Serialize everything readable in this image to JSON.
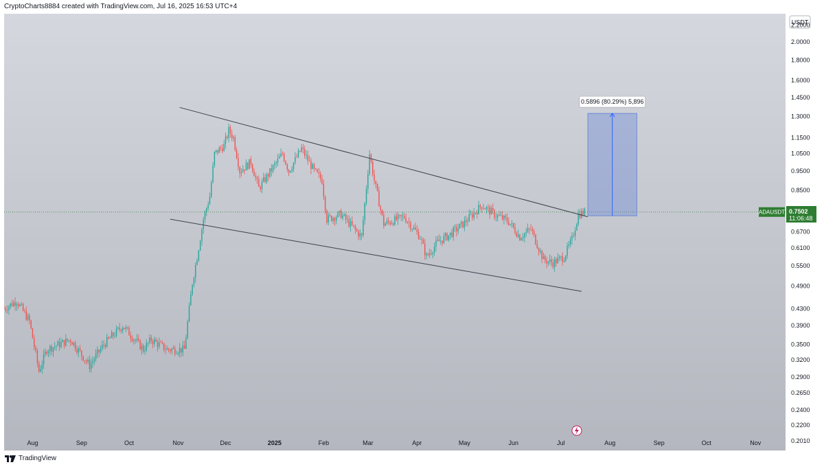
{
  "header": {
    "text": "CryptoCharts8884 created with TradingView.com, Jul 16, 2025 16:53 UTC+4"
  },
  "footer": {
    "brand": "TradingView"
  },
  "colors": {
    "up": "#26a69a",
    "down": "#ef5350",
    "range": "#5b7fd6",
    "currency_badge": "#2e7d32"
  },
  "chart_data": {
    "type": "candlestick",
    "symbol": "ADAUSDT",
    "currency": "USDT",
    "last_price": "0.7502",
    "countdown": "11:06:48",
    "y_scale": "log",
    "ylim": [
      0.19,
      2.35
    ],
    "y_ticks": [
      "2.2000",
      "2.0000",
      "1.8000",
      "1.6000",
      "1.4500",
      "1.3000",
      "1.1500",
      "1.0500",
      "0.9500",
      "0.8500",
      "0.7502",
      "0.6700",
      "0.6100",
      "0.5500",
      "0.4900",
      "0.4300",
      "0.3900",
      "0.3500",
      "0.3200",
      "0.2900",
      "0.2650",
      "0.2400",
      "0.2200",
      "0.2010"
    ],
    "x_ticks": [
      "Aug",
      "Sep",
      "Oct",
      "Nov",
      "Dec",
      "2025",
      "Feb",
      "Mar",
      "Apr",
      "May",
      "Jun",
      "Jul",
      "Aug",
      "Sep",
      "Oct",
      "Nov"
    ],
    "x_tick_dates": [
      "2024-08-01",
      "2024-09-01",
      "2024-10-01",
      "2024-11-01",
      "2024-12-01",
      "2025-01-01",
      "2025-02-01",
      "2025-03-01",
      "2025-04-01",
      "2025-05-01",
      "2025-06-01",
      "2025-07-01",
      "2025-08-01",
      "2025-09-01",
      "2025-10-01",
      "2025-11-01"
    ],
    "xlim": [
      "2024-07-14",
      "2025-11-20"
    ],
    "price_path": [
      [
        "2024-07-14",
        0.43
      ],
      [
        "2024-07-22",
        0.45
      ],
      [
        "2024-07-30",
        0.4
      ],
      [
        "2024-08-05",
        0.3
      ],
      [
        "2024-08-10",
        0.34
      ],
      [
        "2024-08-25",
        0.36
      ],
      [
        "2024-09-06",
        0.31
      ],
      [
        "2024-09-15",
        0.35
      ],
      [
        "2024-09-27",
        0.39
      ],
      [
        "2024-10-10",
        0.34
      ],
      [
        "2024-10-15",
        0.36
      ],
      [
        "2024-10-25",
        0.34
      ],
      [
        "2024-11-05",
        0.34
      ],
      [
        "2024-11-10",
        0.5
      ],
      [
        "2024-11-13",
        0.58
      ],
      [
        "2024-11-17",
        0.72
      ],
      [
        "2024-11-21",
        0.82
      ],
      [
        "2024-11-24",
        1.05
      ],
      [
        "2024-11-30",
        1.1
      ],
      [
        "2024-12-03",
        1.2
      ],
      [
        "2024-12-06",
        1.15
      ],
      [
        "2024-12-10",
        0.95
      ],
      [
        "2024-12-17",
        1.0
      ],
      [
        "2024-12-22",
        0.86
      ],
      [
        "2025-01-06",
        1.05
      ],
      [
        "2025-01-10",
        0.95
      ],
      [
        "2025-01-18",
        1.08
      ],
      [
        "2025-01-26",
        0.95
      ],
      [
        "2025-01-31",
        0.9
      ],
      [
        "2025-02-03",
        0.72
      ],
      [
        "2025-02-12",
        0.74
      ],
      [
        "2025-02-25",
        0.65
      ],
      [
        "2025-03-02",
        1.05
      ],
      [
        "2025-03-05",
        0.9
      ],
      [
        "2025-03-11",
        0.7
      ],
      [
        "2025-03-24",
        0.73
      ],
      [
        "2025-04-03",
        0.65
      ],
      [
        "2025-04-07",
        0.58
      ],
      [
        "2025-04-14",
        0.63
      ],
      [
        "2025-04-22",
        0.66
      ],
      [
        "2025-04-30",
        0.7
      ],
      [
        "2025-05-12",
        0.78
      ],
      [
        "2025-05-20",
        0.74
      ],
      [
        "2025-05-29",
        0.71
      ],
      [
        "2025-06-05",
        0.65
      ],
      [
        "2025-06-12",
        0.68
      ],
      [
        "2025-06-20",
        0.57
      ],
      [
        "2025-06-26",
        0.56
      ],
      [
        "2025-07-03",
        0.58
      ],
      [
        "2025-07-08",
        0.64
      ],
      [
        "2025-07-12",
        0.74
      ],
      [
        "2025-07-16",
        0.75
      ]
    ],
    "trendlines": [
      {
        "name": "upper",
        "from": [
          "2024-11-02",
          1.37
        ],
        "to": [
          "2025-07-18",
          0.73
        ]
      },
      {
        "name": "lower",
        "from": [
          "2024-10-27",
          0.72
        ],
        "to": [
          "2025-07-14",
          0.475
        ]
      }
    ],
    "annotation": {
      "label": "0.5896 (80.29%) 5,896",
      "start_date": "2025-07-18",
      "end_date": "2025-08-18",
      "from_price": 0.7342,
      "to_price": 1.3238
    }
  }
}
